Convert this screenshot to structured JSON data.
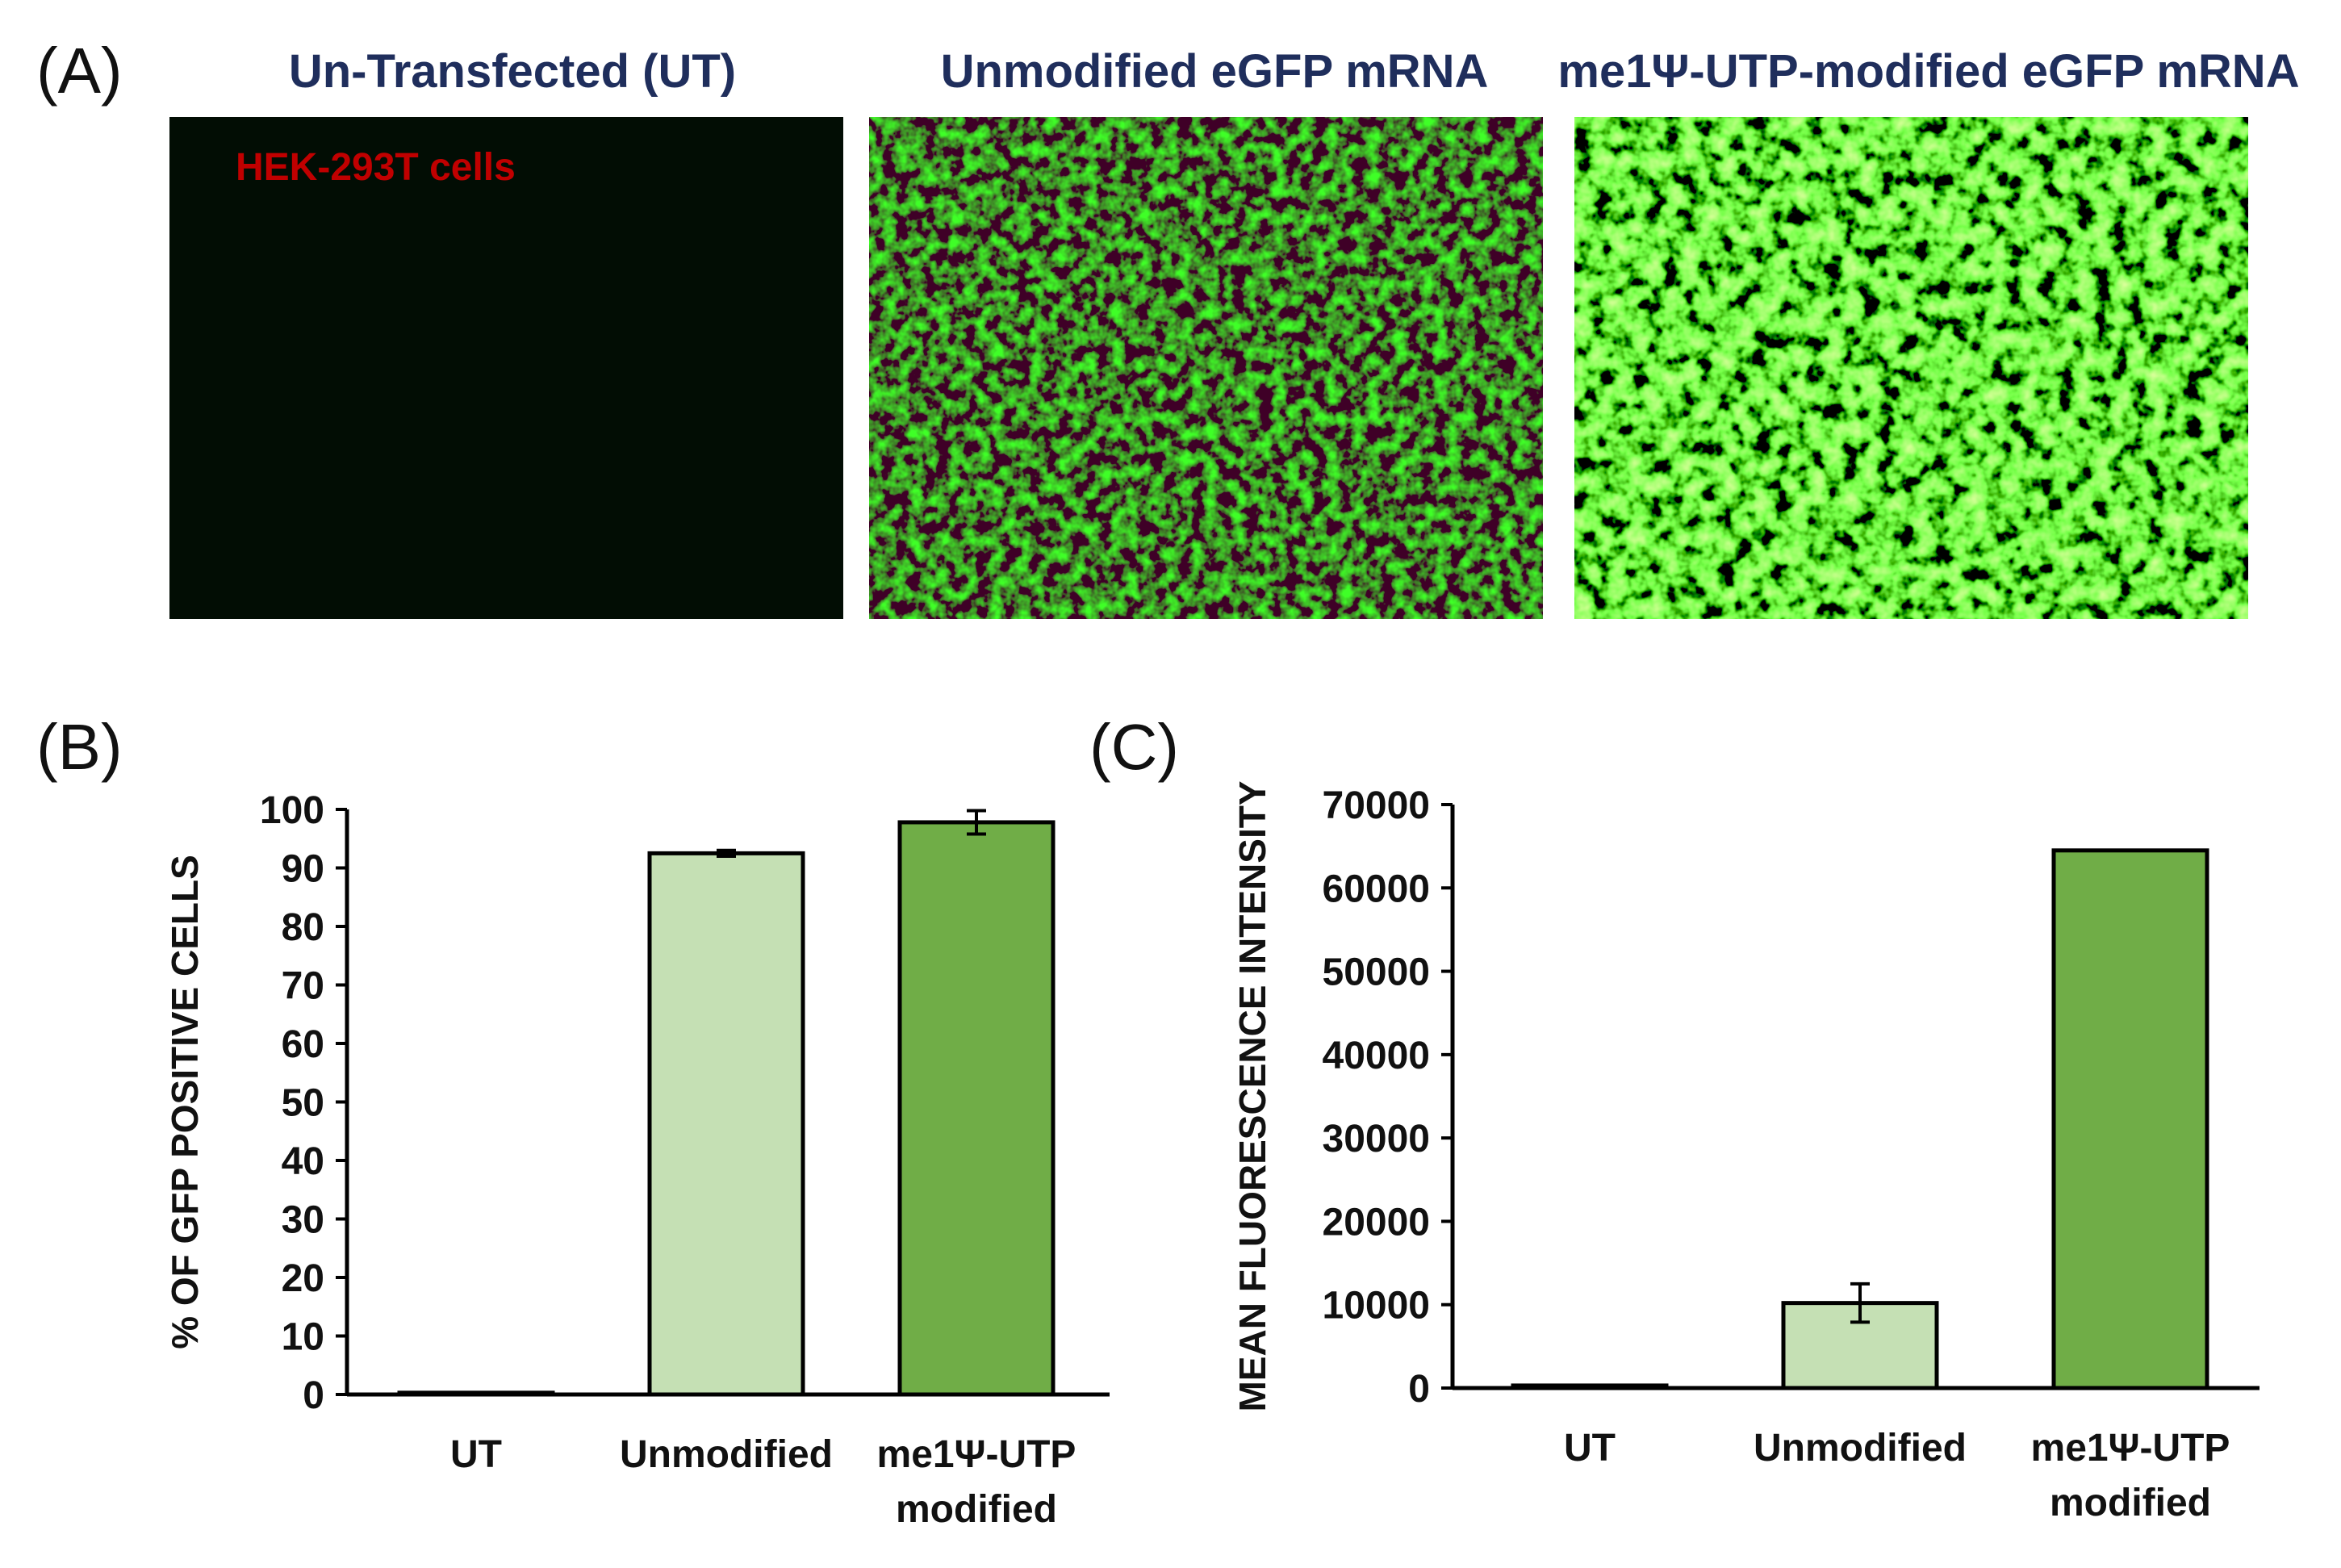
{
  "panels": {
    "a_label": "(A)",
    "b_label": "(B)",
    "c_label": "(C)"
  },
  "micrographs": [
    {
      "title": "Un-Transfected (UT)",
      "brightness": 0.0
    },
    {
      "title": "Unmodified eGFP mRNA",
      "brightness": 0.3
    },
    {
      "title": "me1Ψ-UTP-modified eGFP mRNA",
      "brightness": 1.0
    }
  ],
  "cell_line_label": "HEK-293T cells",
  "colors": {
    "title_navy": "#1f2e5c",
    "cell_label_red": "#c00000",
    "bar_light_green": "#c5e0b4",
    "bar_dark_green": "#70ad47",
    "bar_ut": "#ffffff"
  },
  "chart_data": [
    {
      "id": "B",
      "type": "bar",
      "categories": [
        "UT",
        "Unmodified",
        "me1Ψ-UTP modified"
      ],
      "category_lines": [
        [
          "UT"
        ],
        [
          "Unmodified"
        ],
        [
          "me1Ψ-UTP",
          "modified"
        ]
      ],
      "values": [
        0.3,
        92.5,
        97.8
      ],
      "errors": [
        0,
        0.5,
        2.0
      ],
      "ylabel": "% OF GFP POSITIVE CELLS",
      "xlabel": "",
      "ylim": [
        0,
        100
      ],
      "yticks": [
        0,
        10,
        20,
        30,
        40,
        50,
        60,
        70,
        80,
        90,
        100
      ],
      "grid": false
    },
    {
      "id": "C",
      "type": "bar",
      "categories": [
        "UT",
        "Unmodified",
        "me1Ψ-UTP modified"
      ],
      "category_lines": [
        [
          "UT"
        ],
        [
          "Unmodified"
        ],
        [
          "me1Ψ-UTP",
          "modified"
        ]
      ],
      "values": [
        300,
        10200,
        64500
      ],
      "errors": [
        0,
        2300,
        0
      ],
      "ylabel": "MEAN FLUORESCENCE INTENSITY",
      "xlabel": "",
      "ylim": [
        0,
        70000
      ],
      "yticks": [
        0,
        10000,
        20000,
        30000,
        40000,
        50000,
        60000,
        70000
      ],
      "grid": false
    }
  ]
}
